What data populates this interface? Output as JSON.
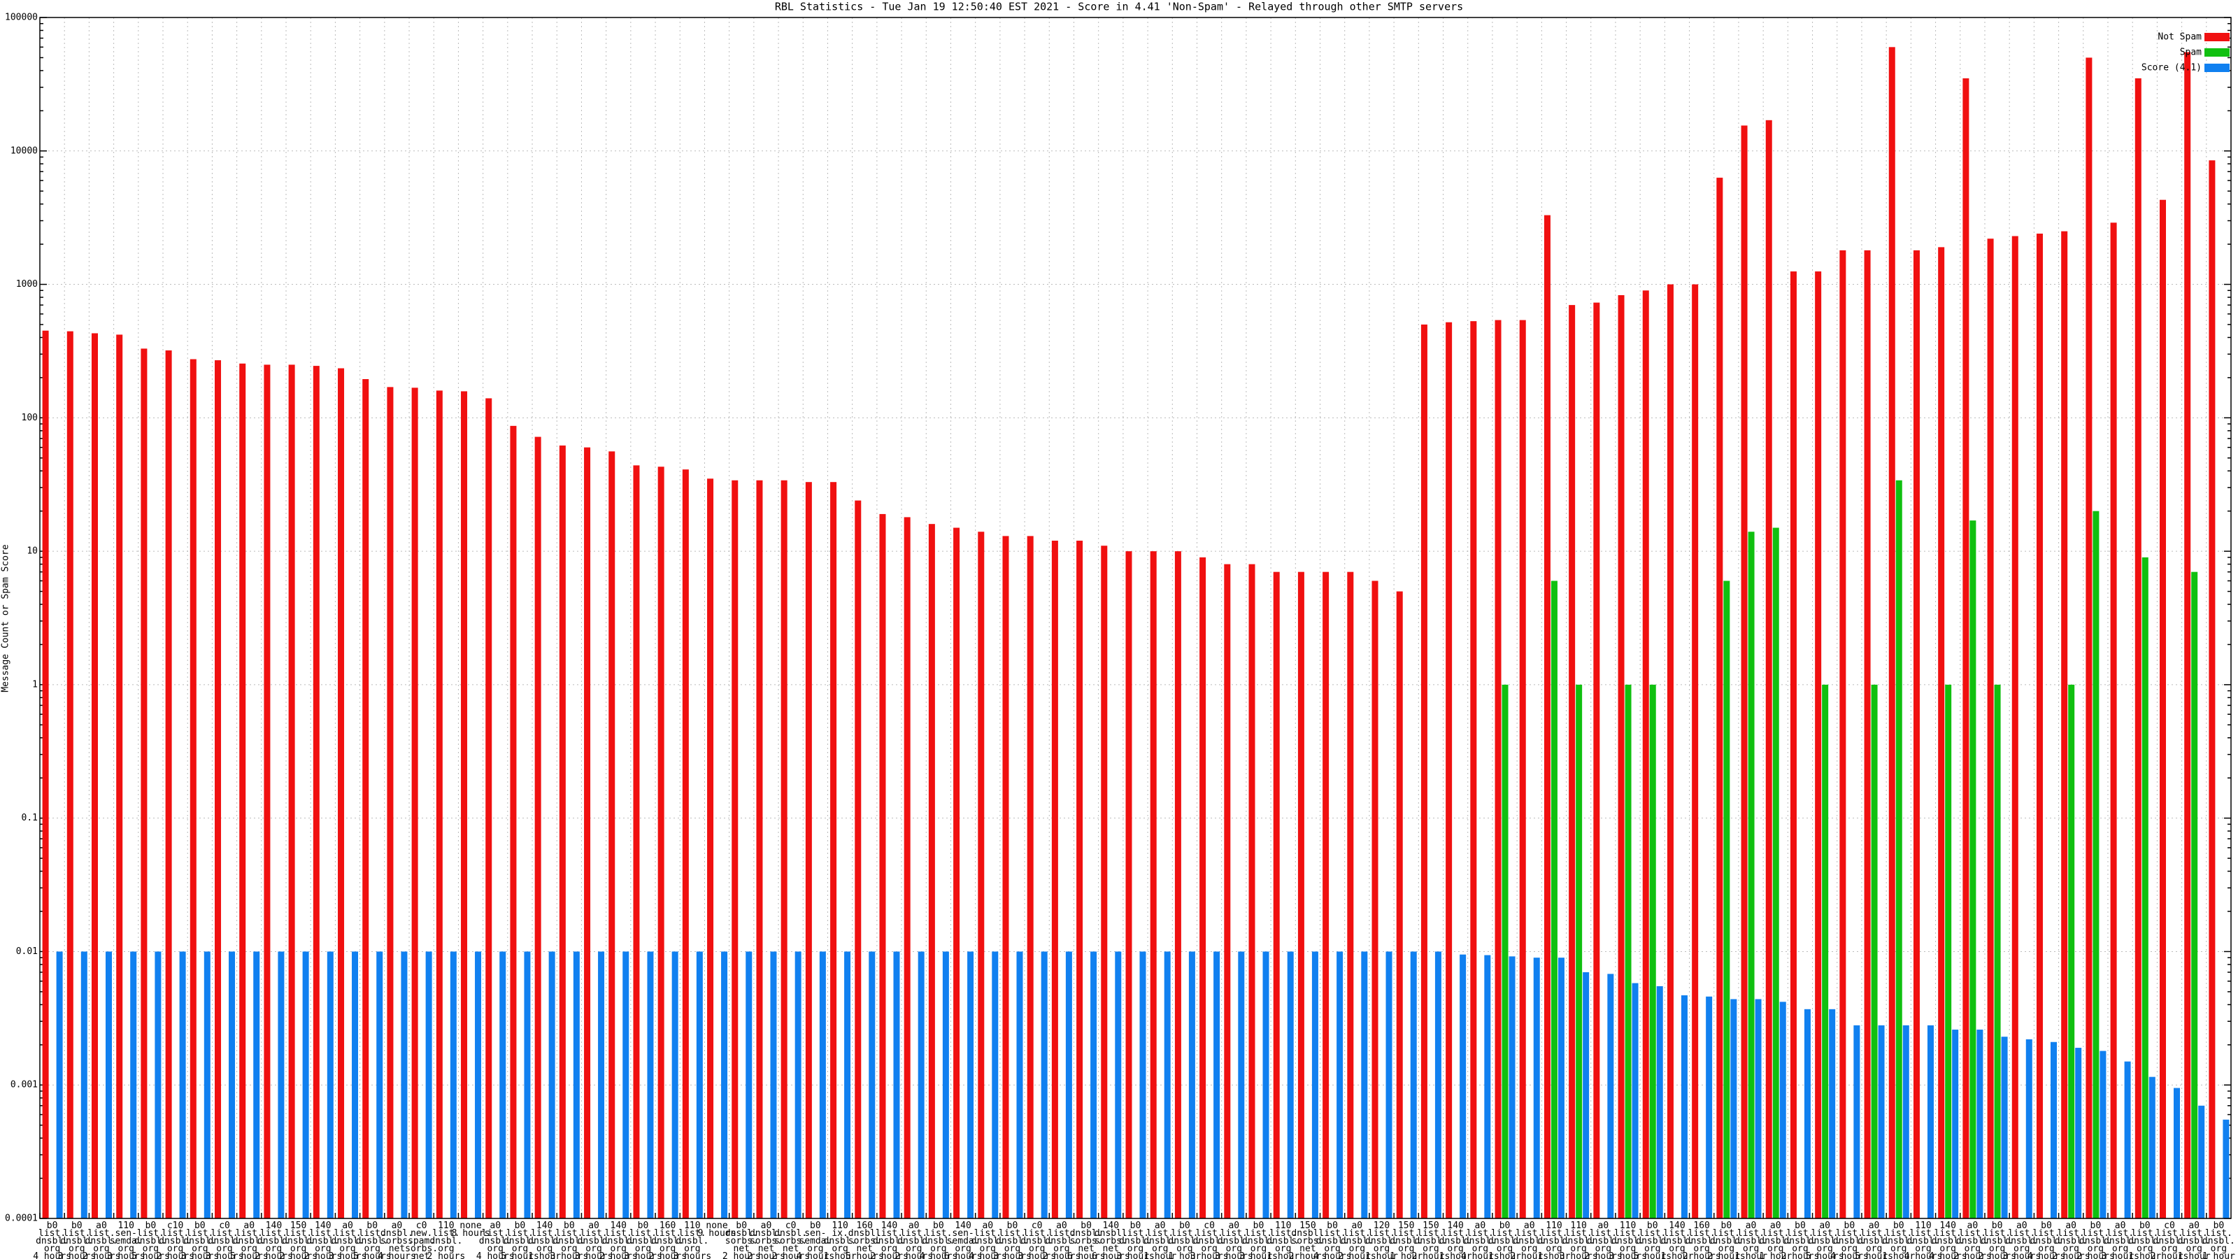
{
  "chart_data": {
    "type": "bar",
    "title": "RBL Statistics - Tue Jan 19 12:50:40 EST 2021 - Score in 4.41 'Non-Spam' - Relayed through other SMTP servers",
    "y_label": "Message Count or Spam Score",
    "log_scale": true,
    "grid": true,
    "legend": "top-right",
    "ylim": [
      0.0001,
      100000
    ],
    "yticks": [
      0.0001,
      0.001,
      0.01,
      0.1,
      1,
      10,
      100,
      1000,
      10000,
      100000
    ],
    "categories": [
      "b0\nlist.\ndnsbl.\norg\n4 hours",
      "b0\nlist.\ndnsbl.\norg\n3 hours",
      "a0\nlist.\ndnsbl.\norg\n2 hours",
      "110\nsen-\nsemda.\norg\n3 hours",
      "b0\nlist.\ndnsbl.\norg\n5 hours",
      "c10\nlist.\ndnsbl.\norg\n2 hours",
      "b0\nlist.\ndnsbl.\norg\n3 hours",
      "c0\nlist.\ndnsbl.\norg\n3 hours",
      "a0\nlist.\ndnsbl.\norg\n5 hours",
      "140\nlist.\ndnsbl.\norg\n2 hours",
      "150\nlist.\ndnsbl.\norg\n2 hours",
      "140\nlist.\ndnsbl.\norg\n2 hours",
      "a0\nlist.\ndnsbl.\norg\n3 hours",
      "b0\nlist.\ndnsbl.\norg\n5 hours",
      "a0\ndnsbl.\nsorbs.\nnet\n4 hours",
      "c0\nnew.\nspam.\nsorbs.\nnet\n4 hours",
      "110\nlist.\ndnsbl.\norg\n2 hours",
      "none\n8 hours",
      "a0\nlist.\ndnsbl.\norg\n4 hours",
      "b0\nlist.\ndnsbl.\norg\n5 hours",
      "140\nlist.\ndnsbl.\norg\n1 hour",
      "b0\nlist.\ndnsbl.\norg\n3 hours",
      "a0\nlist.\ndnsbl.\norg\n3 hours",
      "140\nlist.\ndnsbl.\norg\n2 hours",
      "b0\nlist.\ndnsbl.\norg\n3 hours",
      "160\nlist.\ndnsbl.\norg\n2 hours",
      "110\nlist.\ndnsbl.\norg\n3 hours",
      "none\n9 hours",
      "b0\ndnsbl.\nsorbs.\nnet\n2 hours",
      "a0\ndnsbl.\nsorbs.\nnet\n2 hours",
      "c0\ndnsbl.\nsorbs.\nnet\n2 hours",
      "b0\nsen-\nsemda.\norg\n4 hours",
      "110\nix.\ndnsbl.\norg\n1 hour",
      "160\ndnsbl.\nsorbs.\nnet\n5 hours",
      "140\nlist.\ndnsbl.\norg\n2 hours",
      "a0\nlist.\ndnsbl.\norg\n2 hours",
      "b0\nlist.\ndnsbl.\norg\n4 hours",
      "140\nsen-\nsemda.\norg\n6 hours",
      "a0\nlist.\ndnsbl.\norg\n4 hours",
      "b0\nlist.\ndnsbl.\norg\n3 hours",
      "c0\nlist.\ndnsbl.\norg\n3 hours",
      "a0\nlist.\ndnsbl.\norg\n2 hours",
      "b0\ndnsbl.\nsorbs.\nnet\n6 hours",
      "140\ndnsbl.\nsorbs.\nnet\n6 hours",
      "b0\nlist.\ndnsbl.\norg\n3 hours",
      "a0\nlist.\ndnsbl.\norg\n1 hour",
      "b0\nlist.\ndnsbl.\norg\n1 hour",
      "c0\nlist.\ndnsbl.\norg\n3 hours",
      "a0\nlist.\ndnsbl.\norg\n3 hours",
      "b0\nlist.\ndnsbl.\norg\n3 hours",
      "110\nlist.\ndnsbl.\norg\n1 hour",
      "150\ndnsbl.\nsorbs.\nnet\n2 hours",
      "b0\nlist.\ndnsbl.\norg\n4 hours",
      "a0\nlist.\ndnsbl.\norg\n2 hours",
      "120\nlist.\ndnsbl.\norg\n1 hour",
      "150\nlist.\ndnsbl.\norg\n1 hour",
      "150\nlist.\ndnsbl.\norg\n2 hours",
      "140\nlist.\ndnsbl.\norg\n1 hour",
      "a0\nlist.\ndnsbl.\norg\n4 hours",
      "b0\nlist.\ndnsbl.\norg\n1 hour",
      "a0\nlist.\ndnsbl.\norg\n2 hours",
      "110\nlist.\ndnsbl.\norg\n1 hour",
      "110\nlist.\ndnsbl.\norg\n3 hours",
      "a0\nlist.\ndnsbl.\norg\n2 hours",
      "110\nlist.\ndnsbl.\norg\n3 hours",
      "b0\nlist.\ndnsbl.\norg\n5 hours",
      "140\nlist.\ndnsbl.\norg\n1 hour",
      "160\nlist.\ndnsbl.\norg\n2 hours",
      "b0\nlist.\ndnsbl.\norg\n2 hours",
      "a0\nlist.\ndnsbl.\norg\n1 hour",
      "a0\nlist.\ndnsbl.\norg\n1 hour",
      "b0\nlist.\ndnsbl.\norg\n2 hours",
      "a0\nlist.\ndnsbl.\norg\n5 hours",
      "b0\nlist.\ndnsbl.\norg\n4 hours",
      "a0\nlist.\ndnsbl.\norg\n5 hours",
      "b0\nlist.\ndnsbl.\norg\n1 hour",
      "110\nlist.\ndnsbl.\norg\n4 hours",
      "140\nlist.\ndnsbl.\norg\n4 hours",
      "a0\nlist.\ndnsbl.\norg\n2 hours",
      "b0\nlist.\ndnsbl.\norg\n2 hours",
      "a0\nlist.\ndnsbl.\norg\n3 hours",
      "b0\nlist.\ndnsbl.\norg\n4 hours",
      "a0\nlist.\ndnsbl.\norg\n2 hours",
      "b0\nlist.\ndnsbl.\norg\n2 hours",
      "a0\nlist.\ndnsbl.\norg\n3 hours",
      "b0\nlist.\ndnsbl.\norg\n1 hour",
      "c0\nlist.\ndnsbl.\norg\n2 hours",
      "a0\nlist.\ndnsbl.\norg\n1 hour",
      "b0\nlist.\ndnsbl.\norg\n1 hour"
    ],
    "series": [
      {
        "name": "Not Spam",
        "color": "#f01010",
        "values": [
          450,
          445,
          430,
          420,
          330,
          320,
          275,
          270,
          255,
          250,
          250,
          245,
          235,
          195,
          170,
          168,
          160,
          158,
          140,
          87,
          72,
          62,
          60,
          56,
          44,
          43,
          41,
          35,
          34,
          34,
          34,
          33,
          33,
          24,
          19,
          18,
          16,
          15,
          14,
          13,
          13,
          12,
          12,
          11,
          10,
          10,
          10,
          9,
          8,
          8,
          7,
          7,
          7,
          7,
          6,
          5,
          500,
          520,
          530,
          540,
          540,
          3300,
          700,
          730,
          830,
          900,
          1000,
          1000,
          6300,
          15500,
          17000,
          1250,
          1250,
          1800,
          1800,
          60000,
          1800,
          1900,
          35000,
          2200,
          2300,
          2400,
          2500,
          50000,
          2900,
          35000,
          4300,
          55000,
          8500
        ]
      },
      {
        "name": "Spam",
        "color": "#10c010",
        "values": [
          null,
          null,
          null,
          null,
          null,
          null,
          null,
          null,
          null,
          null,
          null,
          null,
          null,
          null,
          null,
          null,
          null,
          null,
          null,
          null,
          null,
          null,
          null,
          null,
          null,
          null,
          null,
          null,
          null,
          null,
          null,
          null,
          null,
          null,
          null,
          null,
          null,
          null,
          null,
          null,
          null,
          null,
          null,
          null,
          null,
          null,
          null,
          null,
          null,
          null,
          null,
          null,
          null,
          null,
          null,
          null,
          null,
          null,
          null,
          1,
          null,
          6,
          1,
          null,
          1,
          1,
          null,
          null,
          6,
          14,
          15,
          null,
          1,
          null,
          1,
          34,
          null,
          1,
          17,
          1,
          null,
          null,
          1,
          20,
          null,
          9,
          null,
          7,
          null
        ]
      },
      {
        "name": "Score (4.1)",
        "color": "#1080f0",
        "values": [
          0.01,
          0.01,
          0.01,
          0.01,
          0.01,
          0.01,
          0.01,
          0.01,
          0.01,
          0.01,
          0.01,
          0.01,
          0.01,
          0.01,
          0.01,
          0.01,
          0.01,
          0.01,
          0.01,
          0.01,
          0.01,
          0.01,
          0.01,
          0.01,
          0.01,
          0.01,
          0.01,
          0.01,
          0.01,
          0.01,
          0.01,
          0.01,
          0.01,
          0.01,
          0.01,
          0.01,
          0.01,
          0.01,
          0.01,
          0.01,
          0.01,
          0.01,
          0.01,
          0.01,
          0.01,
          0.01,
          0.01,
          0.01,
          0.01,
          0.01,
          0.01,
          0.01,
          0.01,
          0.01,
          0.01,
          0.01,
          0.01,
          0.0095,
          0.0094,
          0.0092,
          0.009,
          0.009,
          0.007,
          0.0068,
          0.0058,
          0.0055,
          0.0047,
          0.0046,
          0.0044,
          0.0044,
          0.0042,
          0.0037,
          0.0037,
          0.0028,
          0.0028,
          0.0028,
          0.0028,
          0.0026,
          0.0026,
          0.0023,
          0.0022,
          0.0021,
          0.0019,
          0.0018,
          0.0015,
          0.00115,
          0.00095,
          0.0007,
          0.00055
        ]
      }
    ]
  }
}
